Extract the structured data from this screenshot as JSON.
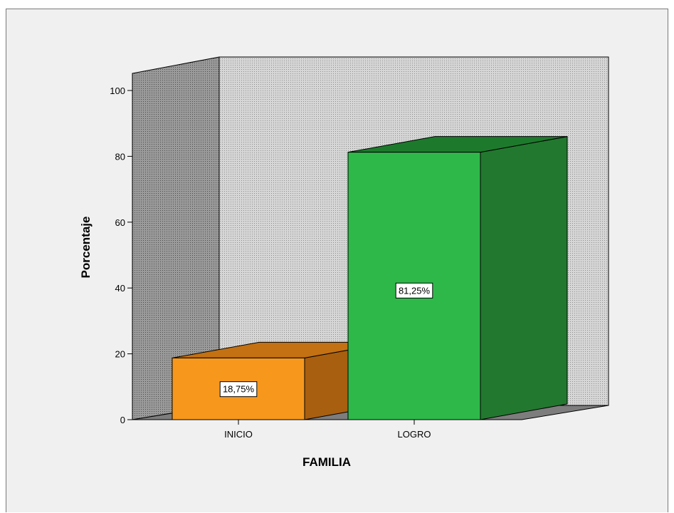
{
  "chart_data": {
    "type": "bar",
    "style": "3d",
    "categories": [
      "INICIO",
      "LOGRO"
    ],
    "values": [
      18.75,
      81.25
    ],
    "data_labels": [
      "18,75%",
      "81,25%"
    ],
    "title": "",
    "xlabel": "FAMILIA",
    "ylabel": "Porcentaje",
    "ylim": [
      0,
      100
    ],
    "yticks": [
      0,
      20,
      40,
      60,
      80,
      100
    ],
    "grid": false,
    "legend": "none",
    "colors": {
      "INICIO": {
        "front": "#f7981d",
        "side": "#a95f10",
        "top": "#c37112"
      },
      "LOGRO": {
        "front": "#2fb84a",
        "side": "#22782f",
        "top": "#1d7a2c"
      },
      "back_wall": "#c4c4c4",
      "side_wall": "#8a8a8a",
      "floor": "#7d7d7d",
      "frame_bg": "#f0f0f0"
    }
  }
}
